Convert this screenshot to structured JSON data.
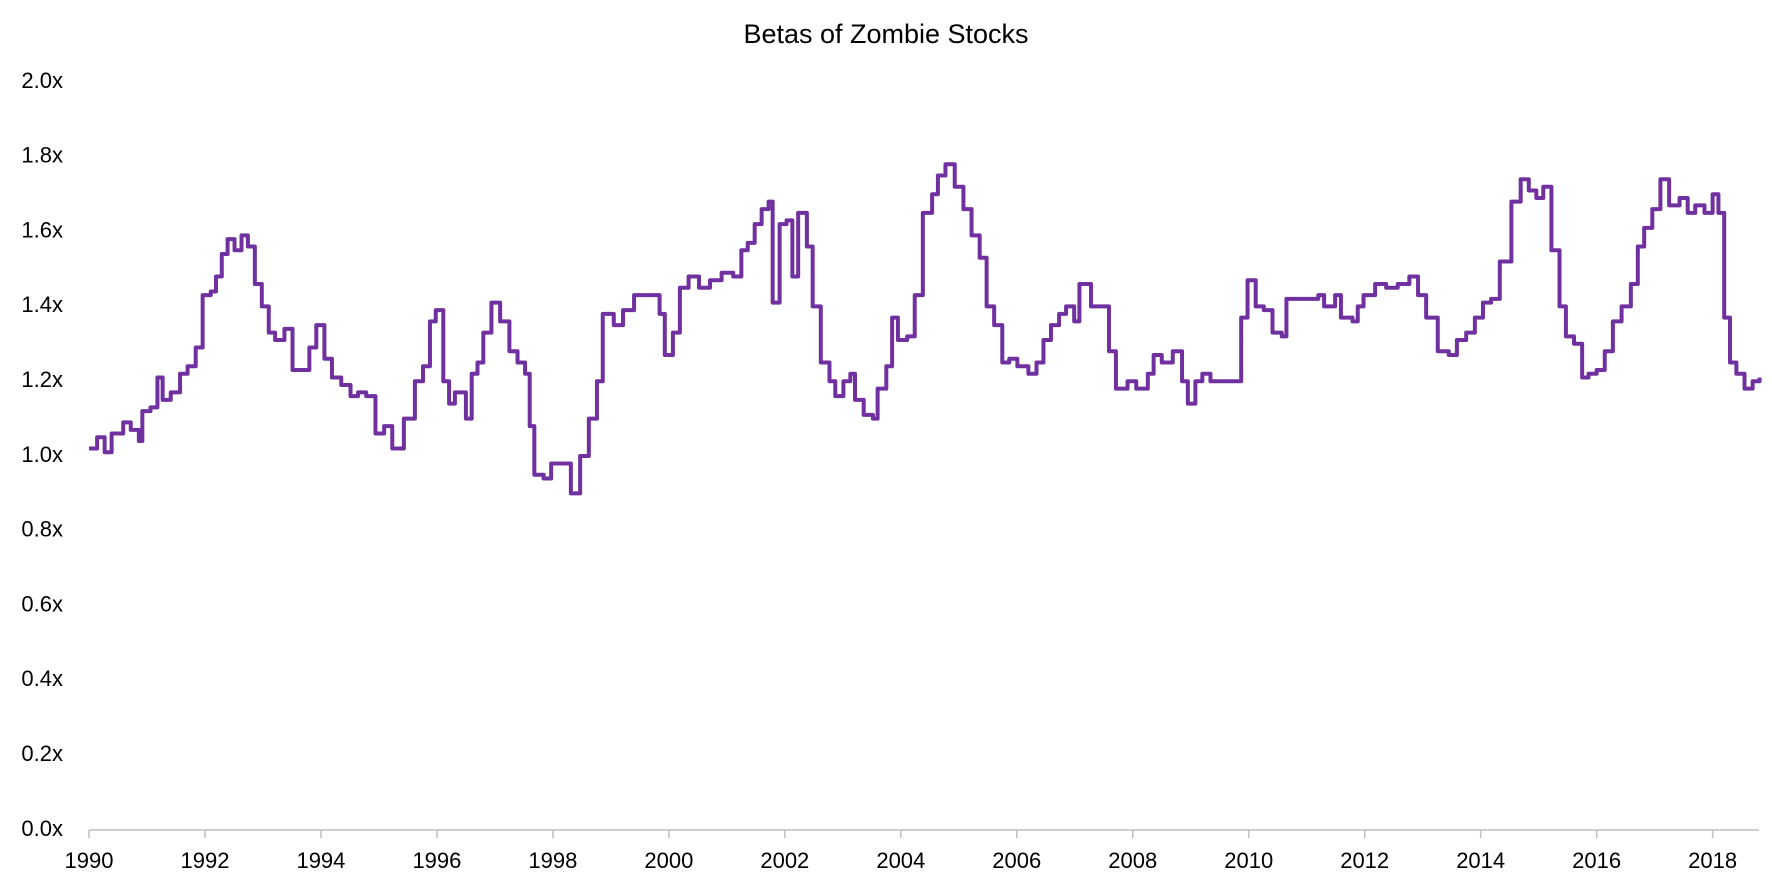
{
  "chart_data": {
    "type": "line",
    "title": "Betas of Zombie Stocks",
    "xlim": [
      1990,
      2018.8
    ],
    "xticks": [
      1990,
      1992,
      1994,
      1996,
      1998,
      2000,
      2002,
      2004,
      2006,
      2008,
      2010,
      2012,
      2014,
      2016,
      2018
    ],
    "ylim": [
      0,
      2
    ],
    "yticks": [
      {
        "value": 0,
        "label": "0.0x"
      },
      {
        "value": 0.2,
        "label": "0.2x"
      },
      {
        "value": 0.4,
        "label": "0.4x"
      },
      {
        "value": 0.6,
        "label": "0.6x"
      },
      {
        "value": 0.8,
        "label": "0.8x"
      },
      {
        "value": 1.0,
        "label": "1.0x"
      },
      {
        "value": 1.2,
        "label": "1.2x"
      },
      {
        "value": 1.4,
        "label": "1.4x"
      },
      {
        "value": 1.6,
        "label": "1.6x"
      },
      {
        "value": 1.8,
        "label": "1.8x"
      },
      {
        "value": 2.0,
        "label": "2.0x"
      }
    ],
    "grid": false,
    "x": [
      1990.0,
      1990.14,
      1990.27,
      1990.39,
      1990.59,
      1990.72,
      1990.86,
      1990.92,
      1991.06,
      1991.18,
      1991.27,
      1991.41,
      1991.57,
      1991.7,
      1991.84,
      1991.96,
      1992.1,
      1992.19,
      1992.29,
      1992.39,
      1992.51,
      1992.63,
      1992.74,
      1992.86,
      1992.98,
      1993.1,
      1993.21,
      1993.37,
      1993.51,
      1993.66,
      1993.8,
      1993.92,
      1994.06,
      1994.19,
      1994.35,
      1994.51,
      1994.64,
      1994.78,
      1994.94,
      1995.09,
      1995.23,
      1995.43,
      1995.62,
      1995.76,
      1995.88,
      1995.98,
      1996.11,
      1996.21,
      1996.31,
      1996.5,
      1996.6,
      1996.7,
      1996.8,
      1996.94,
      1997.09,
      1997.25,
      1997.39,
      1997.52,
      1997.6,
      1997.68,
      1997.84,
      1997.97,
      1998.17,
      1998.31,
      1998.47,
      1998.62,
      1998.76,
      1998.86,
      1999.05,
      1999.21,
      1999.4,
      1999.64,
      1999.84,
      1999.93,
      2000.07,
      2000.19,
      2000.34,
      2000.52,
      2000.71,
      2000.91,
      2001.11,
      2001.25,
      2001.36,
      2001.48,
      2001.6,
      2001.72,
      2001.79,
      2001.91,
      2002.03,
      2002.13,
      2002.23,
      2002.38,
      2002.48,
      2002.62,
      2002.77,
      2002.87,
      2003.01,
      2003.13,
      2003.21,
      2003.36,
      2003.52,
      2003.6,
      2003.75,
      2003.85,
      2003.95,
      2004.11,
      2004.24,
      2004.38,
      2004.54,
      2004.64,
      2004.77,
      2004.93,
      2005.08,
      2005.22,
      2005.36,
      2005.48,
      2005.61,
      2005.75,
      2005.87,
      2006.01,
      2006.2,
      2006.34,
      2006.46,
      2006.59,
      2006.73,
      2006.85,
      2006.99,
      2007.08,
      2007.28,
      2007.47,
      2007.59,
      2007.71,
      2007.91,
      2008.06,
      2008.26,
      2008.36,
      2008.5,
      2008.69,
      2008.85,
      2008.95,
      2009.08,
      2009.2,
      2009.34,
      2009.53,
      2009.73,
      2009.87,
      2009.98,
      2010.12,
      2010.26,
      2010.41,
      2010.57,
      2010.65,
      2010.91,
      2011.2,
      2011.3,
      2011.49,
      2011.59,
      2011.79,
      2011.88,
      2011.98,
      2012.18,
      2012.37,
      2012.57,
      2012.77,
      2012.92,
      2013.06,
      2013.26,
      2013.45,
      2013.59,
      2013.75,
      2013.9,
      2014.04,
      2014.18,
      2014.33,
      2014.53,
      2014.69,
      2014.83,
      2014.96,
      2015.08,
      2015.22,
      2015.36,
      2015.47,
      2015.61,
      2015.75,
      2015.86,
      2016.0,
      2016.14,
      2016.28,
      2016.43,
      2016.59,
      2016.71,
      2016.82,
      2016.96,
      2017.1,
      2017.25,
      2017.43,
      2017.57,
      2017.7,
      2017.86,
      2018.0,
      2018.1,
      2018.2,
      2018.3,
      2018.41,
      2018.55,
      2018.69,
      2018.81
    ],
    "series": [
      {
        "name": "Beta",
        "color": "#7030a0",
        "values": [
          1.02,
          1.05,
          1.01,
          1.06,
          1.09,
          1.07,
          1.04,
          1.12,
          1.13,
          1.21,
          1.15,
          1.17,
          1.22,
          1.24,
          1.29,
          1.43,
          1.44,
          1.48,
          1.54,
          1.58,
          1.55,
          1.59,
          1.56,
          1.46,
          1.4,
          1.33,
          1.31,
          1.34,
          1.23,
          1.23,
          1.29,
          1.35,
          1.26,
          1.21,
          1.19,
          1.16,
          1.17,
          1.16,
          1.06,
          1.08,
          1.02,
          1.1,
          1.2,
          1.24,
          1.36,
          1.39,
          1.2,
          1.14,
          1.17,
          1.1,
          1.22,
          1.25,
          1.33,
          1.41,
          1.36,
          1.28,
          1.25,
          1.22,
          1.08,
          0.95,
          0.94,
          0.98,
          0.98,
          0.9,
          1.0,
          1.1,
          1.2,
          1.38,
          1.35,
          1.39,
          1.43,
          1.43,
          1.38,
          1.27,
          1.33,
          1.45,
          1.48,
          1.45,
          1.47,
          1.49,
          1.48,
          1.55,
          1.57,
          1.62,
          1.66,
          1.68,
          1.41,
          1.62,
          1.63,
          1.48,
          1.65,
          1.56,
          1.4,
          1.25,
          1.2,
          1.16,
          1.2,
          1.22,
          1.15,
          1.11,
          1.1,
          1.18,
          1.24,
          1.37,
          1.31,
          1.32,
          1.43,
          1.65,
          1.7,
          1.75,
          1.78,
          1.72,
          1.66,
          1.59,
          1.53,
          1.4,
          1.35,
          1.25,
          1.26,
          1.24,
          1.22,
          1.25,
          1.31,
          1.35,
          1.38,
          1.4,
          1.36,
          1.46,
          1.4,
          1.4,
          1.28,
          1.18,
          1.2,
          1.18,
          1.22,
          1.27,
          1.25,
          1.28,
          1.2,
          1.14,
          1.2,
          1.22,
          1.2,
          1.2,
          1.2,
          1.37,
          1.47,
          1.4,
          1.39,
          1.33,
          1.32,
          1.42,
          1.42,
          1.43,
          1.4,
          1.43,
          1.37,
          1.36,
          1.4,
          1.43,
          1.46,
          1.45,
          1.46,
          1.48,
          1.43,
          1.37,
          1.28,
          1.27,
          1.31,
          1.33,
          1.37,
          1.41,
          1.42,
          1.52,
          1.68,
          1.74,
          1.71,
          1.69,
          1.72,
          1.55,
          1.4,
          1.32,
          1.3,
          1.21,
          1.22,
          1.23,
          1.28,
          1.36,
          1.4,
          1.46,
          1.56,
          1.61,
          1.66,
          1.74,
          1.67,
          1.69,
          1.65,
          1.67,
          1.65,
          1.7,
          1.65,
          1.37,
          1.25,
          1.22,
          1.18,
          1.2,
          1.21
        ]
      }
    ]
  }
}
